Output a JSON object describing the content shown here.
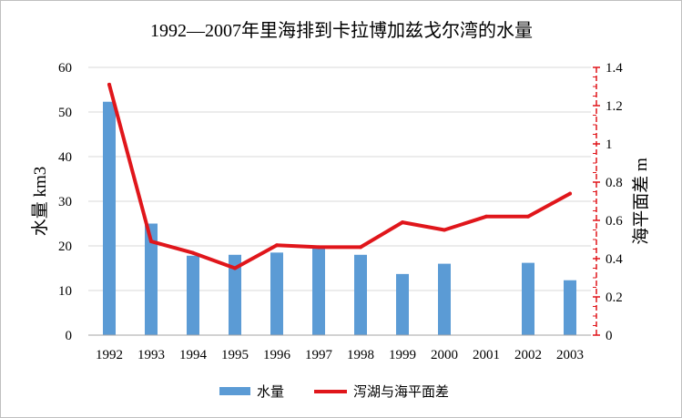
{
  "chart_data": {
    "type": "bar+line",
    "title": "1992—2007年里海排到卡拉博加兹戈尔湾的水量",
    "categories": [
      "1992",
      "1993",
      "1994",
      "1995",
      "1996",
      "1997",
      "1998",
      "1999",
      "2000",
      "2001",
      "2002",
      "2003"
    ],
    "ylabel_left": "水量 km3",
    "ylabel_right": "海平面差 m",
    "ylim_left": [
      0,
      60
    ],
    "yticks_left": [
      "0",
      "10",
      "20",
      "30",
      "40",
      "50",
      "60"
    ],
    "ylim_right": [
      0,
      1.4
    ],
    "yticks_right": [
      "0",
      "0.2",
      "0.4",
      "0.6",
      "0.8",
      "1",
      "1.2",
      "1.4"
    ],
    "grid": true,
    "legend_position": "bottom",
    "series": [
      {
        "name": "水量",
        "type": "bar",
        "axis": "left",
        "color": "#5b9bd5",
        "values": [
          52.3,
          25.0,
          17.8,
          18.0,
          18.5,
          19.7,
          18.0,
          13.7,
          16.0,
          0,
          16.2,
          12.3
        ]
      },
      {
        "name": "泻湖与海平面差",
        "type": "line",
        "axis": "right",
        "color": "#e0161b",
        "values": [
          1.31,
          0.49,
          0.43,
          0.35,
          0.47,
          0.46,
          0.46,
          0.59,
          0.55,
          0.62,
          0.62,
          0.74
        ]
      }
    ]
  }
}
